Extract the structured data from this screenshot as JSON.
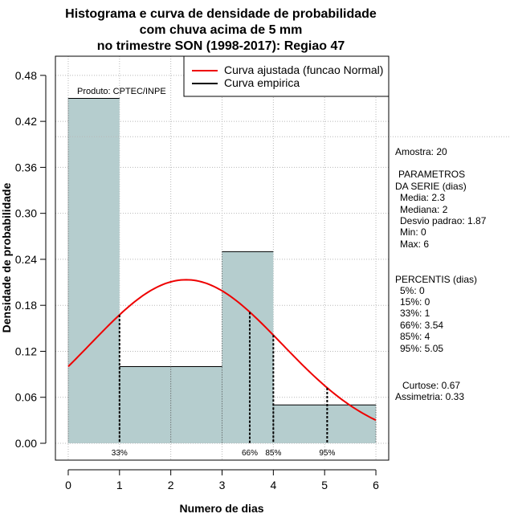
{
  "chart_data": {
    "type": "bar",
    "title_lines": [
      "Histograma e curva de densidade de probabilidade",
      "com chuva acima de 5 mm",
      "no trimestre SON (1998-2017): Regiao 47"
    ],
    "xlabel": "Numero de dias",
    "ylabel": "Densidade de probabilidade",
    "xlim": [
      -0.25,
      6.25
    ],
    "ylim": [
      -0.022,
      0.505
    ],
    "x_ticks": [
      "0",
      "1",
      "2",
      "3",
      "4",
      "5",
      "6"
    ],
    "y_ticks": [
      "0.00",
      "0.06",
      "0.12",
      "0.18",
      "0.24",
      "0.30",
      "0.36",
      "0.42",
      "0.48"
    ],
    "grid": true,
    "bins": [
      {
        "from": 0,
        "to": 1,
        "density": 0.45
      },
      {
        "from": 1,
        "to": 2,
        "density": 0.1
      },
      {
        "from": 2,
        "to": 3,
        "density": 0.1
      },
      {
        "from": 3,
        "to": 4,
        "density": 0.25
      },
      {
        "from": 4,
        "to": 6,
        "density": 0.05
      }
    ],
    "bar_color": "#b5cdce",
    "reference_line_y": 0.4,
    "fitted_curve": {
      "name": "Curva ajustada (funcao Normal)",
      "mean": 2.3,
      "sd": 1.87,
      "color": "#ee0000"
    },
    "empirical_curve": {
      "name": "Curva empirica",
      "color": "#000000"
    },
    "percentile_markers": [
      {
        "label": "33%",
        "x": 1
      },
      {
        "label": "66%",
        "x": 3.54
      },
      {
        "label": "85%",
        "x": 4
      },
      {
        "label": "95%",
        "x": 5.05
      }
    ],
    "legend_position": "top-right",
    "source_note": "Produto: CPTEC/INPE"
  },
  "info": {
    "amostra": "Amostra: 20",
    "parametros_title": "PARAMETROS",
    "parametros_sub": "DA SERIE (dias)",
    "media": "Media: 2.3",
    "mediana": "Mediana: 2",
    "desvio": "Desvio padrao: 1.87",
    "min": "Min: 0",
    "max": "Max: 6",
    "percentis_title": "PERCENTIS (dias)",
    "p5": "5%: 0",
    "p15": "15%: 0",
    "p33": "33%: 1",
    "p66": "66%: 3.54",
    "p85": "85%: 4",
    "p95": "95%: 5.05",
    "curtose": "Curtose: 0.67",
    "assimetria": "Assimetria: 0.33"
  }
}
